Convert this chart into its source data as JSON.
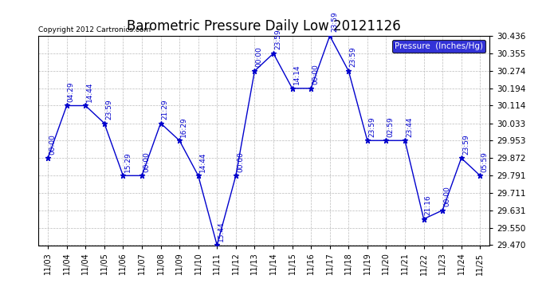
{
  "title": "Barometric Pressure Daily Low 20121126",
  "ylabel": "Pressure  (Inches/Hg)",
  "copyright": "Copyright 2012 Cartronics.com",
  "ylim": [
    29.47,
    30.436
  ],
  "yticks": [
    29.47,
    29.55,
    29.631,
    29.711,
    29.791,
    29.872,
    29.953,
    30.033,
    30.114,
    30.194,
    30.274,
    30.355,
    30.436
  ],
  "x_labels": [
    "11/03",
    "11/04",
    "11/04",
    "11/05",
    "11/06",
    "11/07",
    "11/08",
    "11/09",
    "11/10",
    "11/11",
    "11/12",
    "11/13",
    "11/14",
    "11/15",
    "11/16",
    "11/17",
    "11/18",
    "11/19",
    "11/20",
    "11/21",
    "11/22",
    "11/23",
    "11/24",
    "11/25"
  ],
  "x_values": [
    0,
    1,
    2,
    3,
    4,
    5,
    6,
    7,
    8,
    9,
    10,
    11,
    12,
    13,
    14,
    15,
    16,
    17,
    18,
    19,
    20,
    21,
    22,
    23
  ],
  "y_values": [
    29.872,
    30.114,
    30.114,
    30.033,
    29.791,
    29.791,
    30.033,
    29.953,
    29.791,
    29.47,
    29.791,
    30.274,
    30.355,
    30.194,
    30.194,
    30.436,
    30.274,
    29.953,
    29.953,
    29.953,
    29.591,
    29.631,
    29.872,
    29.791
  ],
  "time_labels": [
    "00:00",
    "04:29",
    "14:44",
    "23:59",
    "15:29",
    "00:00",
    "21:29",
    "16:29",
    "14:44",
    "15:44",
    "00:00",
    "00:00",
    "23:59",
    "14:14",
    "00:00",
    "23:59",
    "23:59",
    "23:59",
    "02:59",
    "23:44",
    "21:16",
    "00:00",
    "23:59",
    "05:59"
  ],
  "line_color": "#0000CD",
  "marker": "*",
  "marker_size": 5,
  "title_fontsize": 12,
  "bg_color": "#ffffff",
  "grid_color": "#bbbbbb",
  "legend_bg": "#0000CD",
  "legend_text_color": "#ffffff"
}
